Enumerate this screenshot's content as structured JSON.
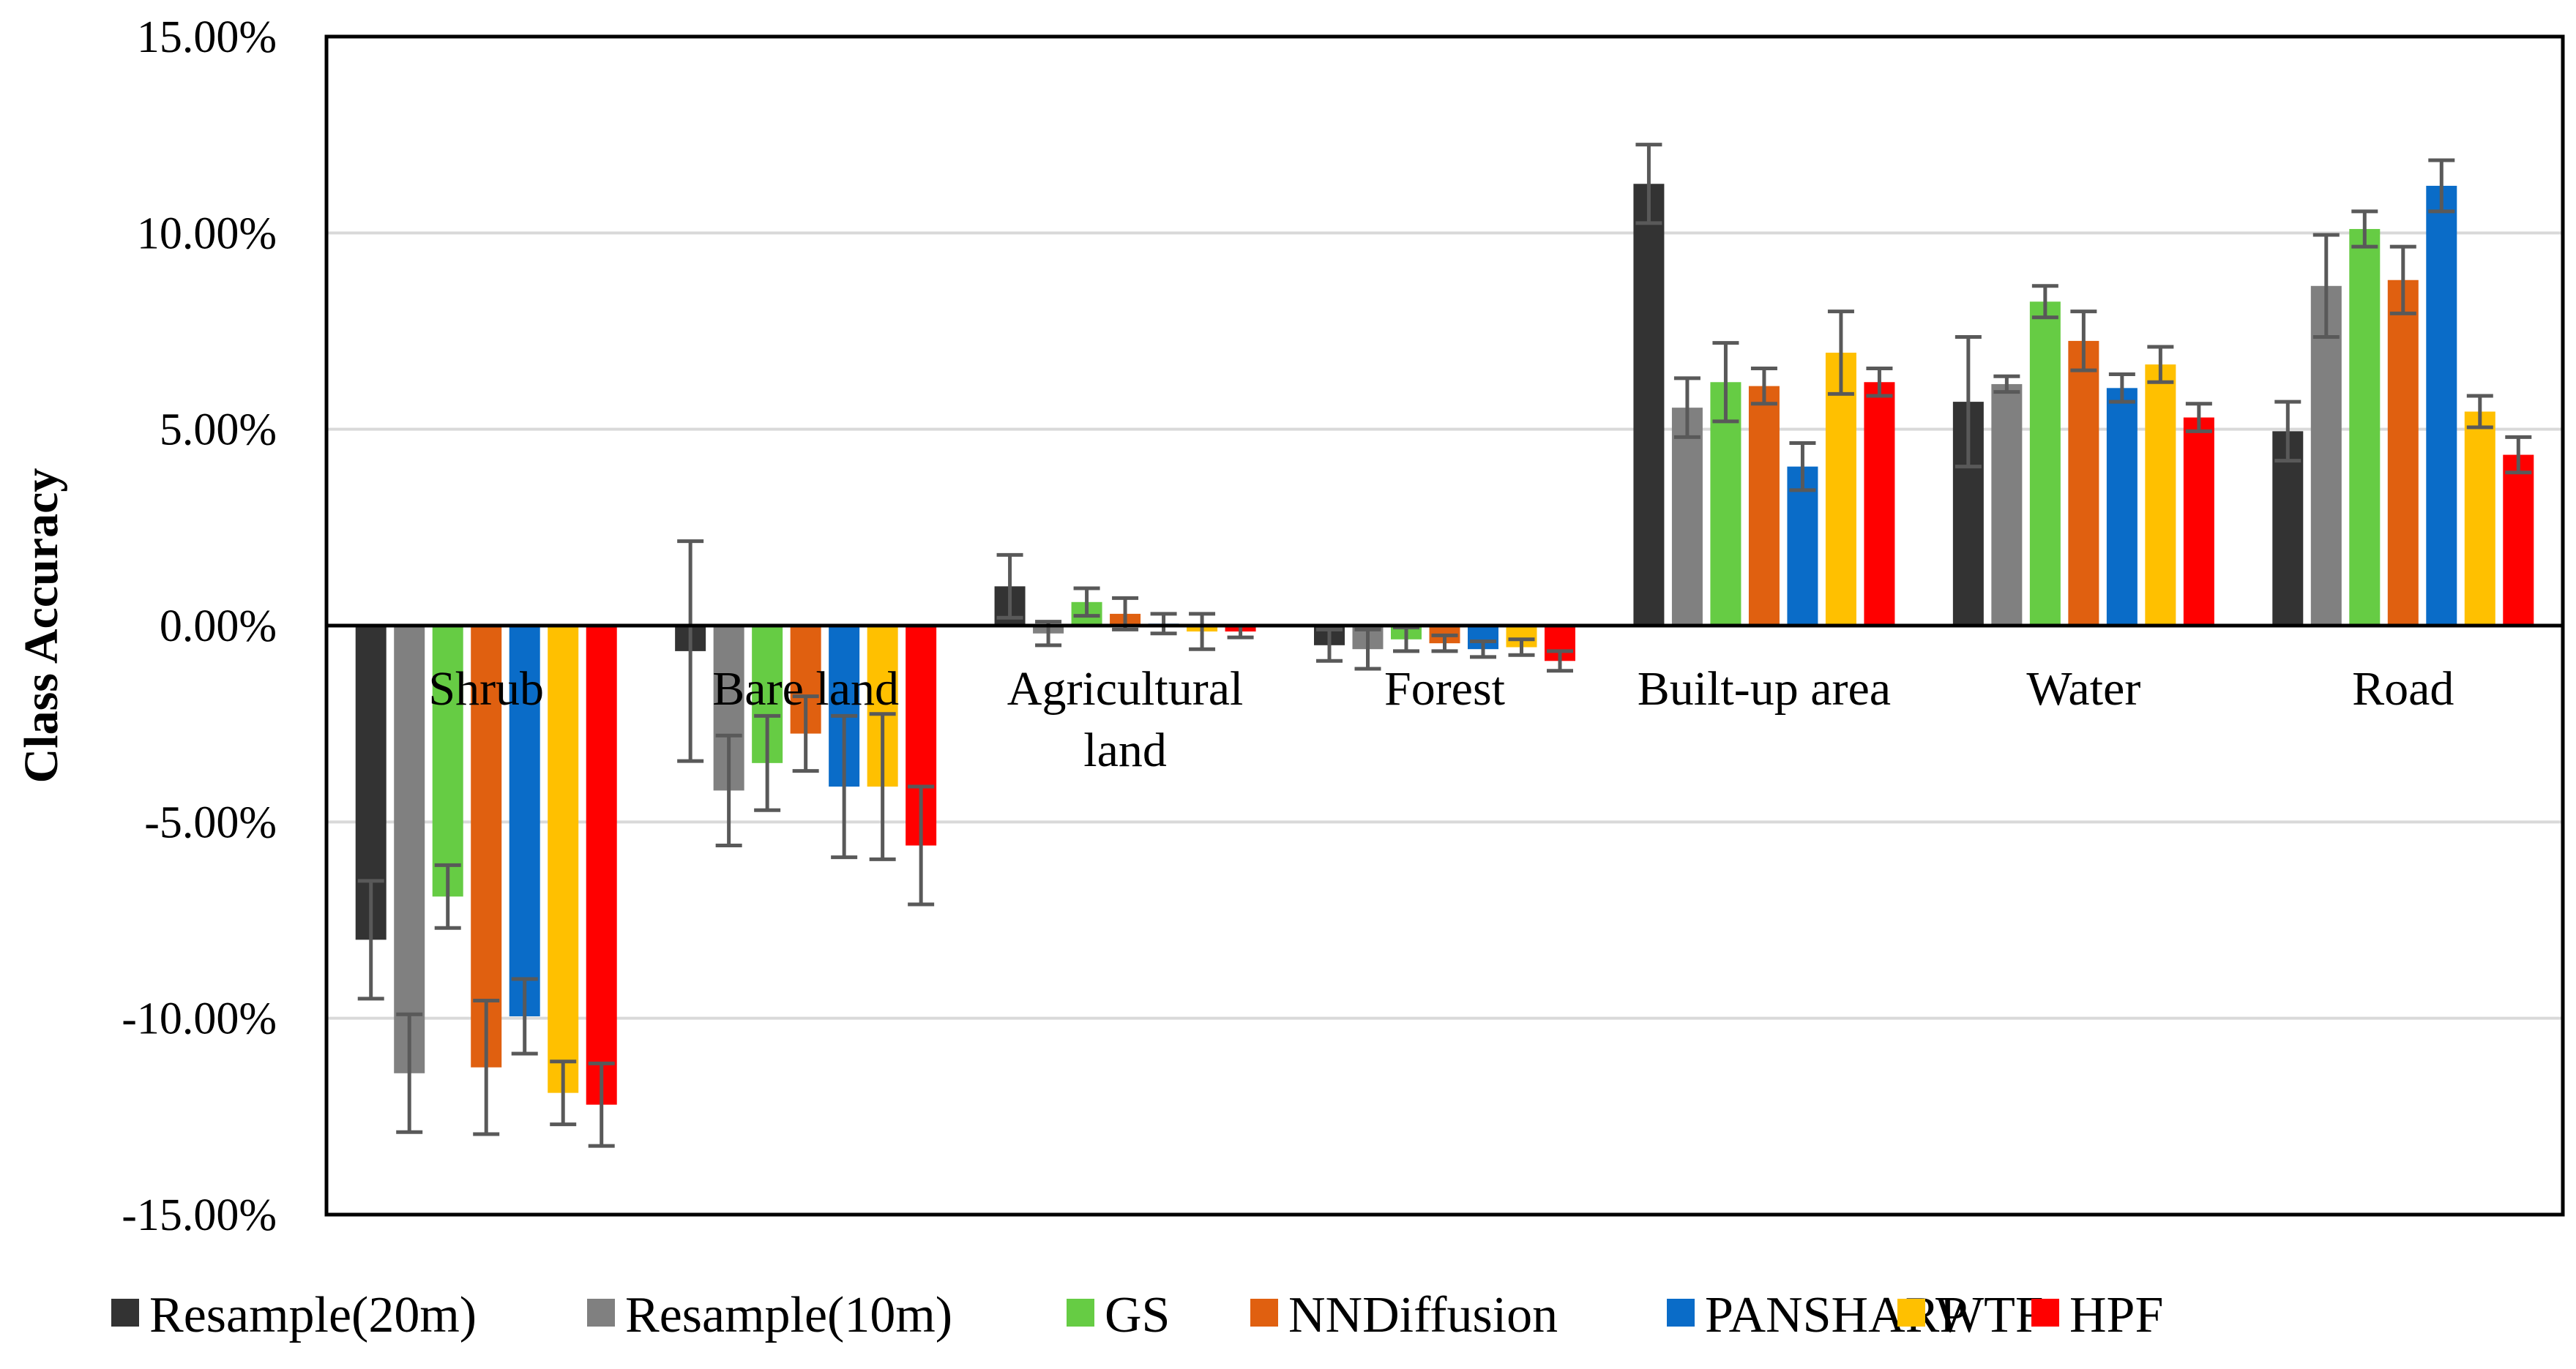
{
  "chart_data": {
    "type": "bar",
    "title": "",
    "xlabel": "",
    "ylabel": "Class Accuracy",
    "ylim": [
      -15,
      15
    ],
    "yticks": [
      -15,
      -10,
      -5,
      0,
      5,
      10,
      15
    ],
    "ytick_labels": [
      "-15.00%",
      "-10.00%",
      "-5.00%",
      "0.00%",
      "5.00%",
      "10.00%",
      "15.00%"
    ],
    "grid": true,
    "legend_position": "bottom",
    "categories": [
      "Shrub",
      "Bare land",
      "Agricultural land",
      "Forest",
      "Built-up area",
      "Water",
      "Road"
    ],
    "category_display": [
      [
        "Shrub"
      ],
      [
        "Bare land"
      ],
      [
        "Agricultural",
        "land"
      ],
      [
        "Forest"
      ],
      [
        "Built-up area"
      ],
      [
        "Water"
      ],
      [
        "Road"
      ]
    ],
    "series": [
      {
        "name": "Resample(20m)",
        "color": "#333333",
        "values": [
          -8.0,
          -0.65,
          1.0,
          -0.5,
          11.25,
          5.7,
          4.95
        ],
        "errors": [
          1.5,
          2.8,
          0.8,
          0.4,
          1.0,
          1.65,
          0.75
        ]
      },
      {
        "name": "Resample(10m)",
        "color": "#808080",
        "values": [
          -11.4,
          -4.2,
          -0.2,
          -0.6,
          5.55,
          6.15,
          8.65
        ],
        "errors": [
          1.5,
          1.4,
          0.3,
          0.5,
          0.75,
          0.2,
          1.3
        ]
      },
      {
        "name": "GS",
        "color": "#66CC44",
        "values": [
          -6.9,
          -3.5,
          0.6,
          -0.35,
          6.2,
          8.25,
          10.1
        ],
        "errors": [
          0.8,
          1.2,
          0.35,
          0.3,
          1.0,
          0.4,
          0.45
        ]
      },
      {
        "name": "NNDiffusion",
        "color": "#E06010",
        "values": [
          -11.25,
          -2.75,
          0.3,
          -0.45,
          6.1,
          7.25,
          8.8
        ],
        "errors": [
          1.7,
          0.95,
          0.4,
          0.2,
          0.45,
          0.75,
          0.85
        ]
      },
      {
        "name": "PANSHARP",
        "color": "#0A6CC8",
        "values": [
          -9.95,
          -4.1,
          0.05,
          -0.6,
          4.05,
          6.05,
          11.2
        ],
        "errors": [
          0.95,
          1.8,
          0.25,
          0.2,
          0.6,
          0.35,
          0.65
        ]
      },
      {
        "name": "WTF",
        "color": "#FFC000",
        "values": [
          -11.9,
          -4.1,
          -0.15,
          -0.55,
          6.95,
          6.65,
          5.45
        ],
        "errors": [
          0.8,
          1.85,
          0.45,
          0.2,
          1.05,
          0.45,
          0.4
        ]
      },
      {
        "name": "HPF",
        "color": "#FF0000",
        "values": [
          -12.2,
          -5.6,
          -0.15,
          -0.9,
          6.2,
          5.3,
          4.35
        ],
        "errors": [
          1.05,
          1.5,
          0.15,
          0.25,
          0.35,
          0.35,
          0.45
        ]
      }
    ]
  }
}
